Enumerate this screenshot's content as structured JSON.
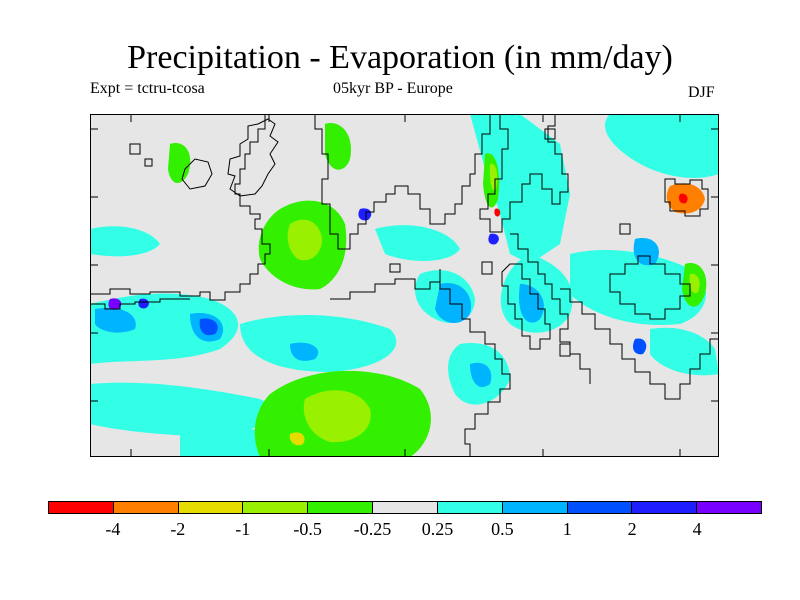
{
  "header": {
    "title": "Precipitation - Evaporation (in mm/day)",
    "experiment": "Expt = tctru-tcosa",
    "period_region": "05kyr BP - Europe",
    "season": "DJF"
  },
  "map": {
    "background_color": "#e6e6e6",
    "coastline_color": "#000000"
  },
  "colorbar": {
    "colors": [
      "#ff0000",
      "#ff8000",
      "#e6dc00",
      "#99f000",
      "#33f000",
      "#e6e6e6",
      "#33ffe6",
      "#00b4ff",
      "#0050ff",
      "#1e1eff",
      "#7800ff"
    ],
    "labels": [
      "-4",
      "-2",
      "-1",
      "-0.5",
      "-0.25",
      "0.25",
      "0.5",
      "1",
      "2",
      "4"
    ]
  }
}
